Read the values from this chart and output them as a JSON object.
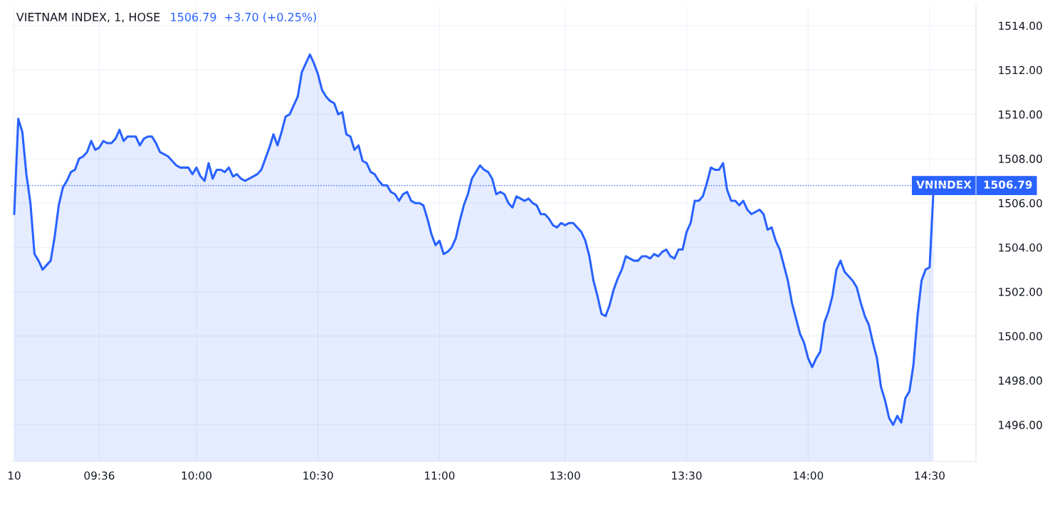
{
  "chart_data": {
    "type": "area",
    "title": "VIETNAM INDEX, 1, HOSE",
    "subtitle": "1506.79  +3.70 (+0.25%)",
    "categories": [
      "10",
      null,
      null,
      null,
      null,
      null,
      null,
      null,
      null,
      null,
      null,
      null,
      null,
      null,
      null,
      null,
      null,
      null,
      null,
      null,
      null,
      "09:36",
      null,
      null,
      null,
      null,
      null,
      null,
      null,
      null,
      null,
      null,
      null,
      null,
      null,
      null,
      null,
      null,
      null,
      null,
      null,
      null,
      null,
      null,
      null,
      "10:00",
      null,
      null,
      null,
      null,
      null,
      null,
      null,
      null,
      null,
      null,
      null,
      null,
      null,
      null,
      null,
      null,
      null,
      null,
      null,
      null,
      null,
      null,
      null,
      null,
      null,
      null,
      null,
      null,
      null,
      "10:30",
      null,
      null,
      null,
      null,
      null,
      null,
      null,
      null,
      null,
      null,
      null,
      null,
      null,
      null,
      null,
      null,
      null,
      null,
      null,
      null,
      null,
      null,
      null,
      null,
      null,
      null,
      null,
      null,
      null,
      "11:00",
      null,
      null,
      null,
      null,
      null,
      null,
      null,
      null,
      null,
      null,
      null,
      null,
      null,
      null,
      null,
      null,
      null,
      null,
      null,
      null,
      null,
      null,
      null,
      null,
      null,
      null,
      null,
      null,
      null,
      null,
      "13:00",
      null,
      null,
      null,
      null,
      null,
      null,
      null,
      null,
      null,
      null,
      null,
      null,
      null,
      null,
      null,
      null,
      null,
      null,
      null,
      null,
      null,
      null,
      null,
      null,
      null,
      null,
      null,
      null,
      null,
      "13:30",
      null,
      null,
      null,
      null,
      null,
      null,
      null,
      null,
      null,
      null,
      null,
      null,
      null,
      null,
      null,
      null,
      null,
      null,
      null,
      null,
      null,
      null,
      null,
      null,
      null,
      null,
      null,
      null,
      null,
      "14:00",
      null,
      null,
      null,
      null,
      null,
      null,
      null,
      null,
      null,
      null,
      null,
      null,
      null,
      null,
      null,
      null,
      null,
      null,
      null,
      null,
      null,
      null,
      null,
      null,
      null,
      null,
      null,
      null,
      null,
      "14:30",
      null
    ],
    "series": [
      {
        "color": "#2962ff",
        "values": [
          1505.5,
          1509.8,
          1509.2,
          1507.3,
          1506.0,
          1503.7,
          1503.4,
          1503.0,
          1503.2,
          1503.4,
          1504.5,
          1505.9,
          1506.7,
          1507.0,
          1507.4,
          1507.5,
          1508.0,
          1508.1,
          1508.3,
          1508.8,
          1508.4,
          1508.5,
          1508.8,
          1508.7,
          1508.7,
          1508.9,
          1509.3,
          1508.8,
          1509.0,
          1509.0,
          1509.0,
          1508.6,
          1508.9,
          1509.0,
          1509.0,
          1508.7,
          1508.3,
          1508.2,
          1508.1,
          1507.9,
          1507.7,
          1507.6,
          1507.6,
          1507.6,
          1507.3,
          1507.6,
          1507.2,
          1507.0,
          1507.8,
          1507.1,
          1507.5,
          1507.5,
          1507.4,
          1507.6,
          1507.2,
          1507.3,
          1507.1,
          1507.0,
          1507.1,
          1507.2,
          1507.3,
          1507.5,
          1508.0,
          1508.5,
          1509.1,
          1508.6,
          1509.2,
          1509.9,
          1510.0,
          1510.4,
          1510.8,
          1511.9,
          1512.3,
          1512.7,
          1512.3,
          1511.8,
          1511.1,
          1510.8,
          1510.6,
          1510.5,
          1510.0,
          1510.1,
          1509.1,
          1509.0,
          1508.4,
          1508.6,
          1507.9,
          1507.8,
          1507.4,
          1507.3,
          1507.0,
          1506.8,
          1506.8,
          1506.5,
          1506.4,
          1506.1,
          1506.4,
          1506.5,
          1506.1,
          1506.0,
          1506.0,
          1505.9,
          1505.3,
          1504.6,
          1504.1,
          1504.3,
          1503.7,
          1503.8,
          1504.0,
          1504.4,
          1505.2,
          1505.9,
          1506.4,
          1507.1,
          1507.4,
          1507.7,
          1507.5,
          1507.4,
          1507.1,
          1506.4,
          1506.5,
          1506.4,
          1506.0,
          1505.8,
          1506.3,
          1506.2,
          1506.1,
          1506.2,
          1506.0,
          1505.9,
          1505.5,
          1505.5,
          1505.3,
          1505.0,
          1504.9,
          1505.1,
          1505.0,
          1505.1,
          1505.1,
          1504.9,
          1504.7,
          1504.3,
          1503.6,
          1502.5,
          1501.8,
          1501.0,
          1500.9,
          1501.4,
          1502.1,
          1502.6,
          1503.0,
          1503.6,
          1503.5,
          1503.4,
          1503.4,
          1503.6,
          1503.6,
          1503.5,
          1503.7,
          1503.6,
          1503.8,
          1503.9,
          1503.6,
          1503.5,
          1503.9,
          1503.9,
          1504.7,
          1505.1,
          1506.1,
          1506.1,
          1506.3,
          1506.9,
          1507.6,
          1507.5,
          1507.5,
          1507.8,
          1506.6,
          1506.1,
          1506.1,
          1505.9,
          1506.1,
          1505.7,
          1505.5,
          1505.6,
          1505.7,
          1505.5,
          1504.8,
          1504.9,
          1504.3,
          1503.9,
          1503.2,
          1502.5,
          1501.5,
          1500.8,
          1500.1,
          1499.7,
          1499.0,
          1498.6,
          1499.0,
          1499.3,
          1500.6,
          1501.1,
          1501.8,
          1503.0,
          1503.4,
          1502.9,
          1502.7,
          1502.5,
          1502.2,
          1501.5,
          1500.9,
          1500.5,
          1499.7,
          1499.0,
          1497.7,
          1497.1,
          1496.3,
          1496.0,
          1496.4,
          1496.1,
          1497.2,
          1497.5,
          1498.7,
          1500.9,
          1502.5,
          1503.0,
          1503.1,
          1506.79
        ]
      }
    ],
    "ylim": [
      1494.35,
      1514.9
    ],
    "yticks": [
      {
        "value": 1496,
        "label": "1496.00"
      },
      {
        "value": 1498,
        "label": "1498.00"
      },
      {
        "value": 1500,
        "label": "1500.00"
      },
      {
        "value": 1502,
        "label": "1502.00"
      },
      {
        "value": 1504,
        "label": "1504.00"
      },
      {
        "value": 1506,
        "label": "1506.00"
      },
      {
        "value": 1508,
        "label": "1508.00"
      },
      {
        "value": 1510,
        "label": "1510.00"
      },
      {
        "value": 1512,
        "label": "1512.00"
      },
      {
        "value": 1514,
        "label": "1514.00"
      }
    ],
    "ref_lines": [
      {
        "axis": "y",
        "value": 1506.79,
        "label": "VNINDEX   1506.79",
        "color": "#2962ff",
        "line_style": "dotted"
      }
    ],
    "grid": true
  }
}
